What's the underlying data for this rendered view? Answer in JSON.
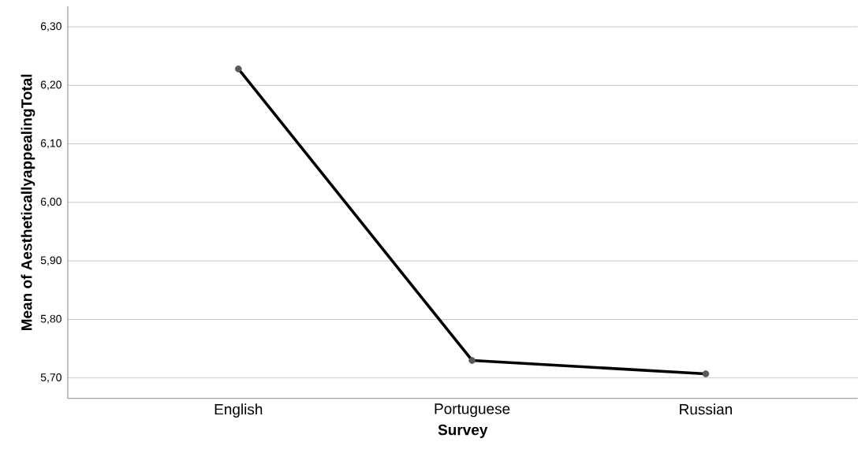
{
  "chart_data": {
    "type": "line",
    "xlabel": "Survey",
    "ylabel": "Mean of AestheticallyappealingTotal",
    "categories": [
      "English",
      "Portuguese",
      "Russian"
    ],
    "series": [
      {
        "color": "#000000",
        "values": [
          6.228,
          5.73,
          5.707
        ]
      }
    ],
    "marker": "circle",
    "line_style": "solid",
    "grid": "y",
    "ylim": [
      5.665,
      6.335
    ],
    "yticks": [
      {
        "value": 5.7,
        "label": "5,70"
      },
      {
        "value": 5.8,
        "label": "5,80"
      },
      {
        "value": 5.9,
        "label": "5,90"
      },
      {
        "value": 6.0,
        "label": "6,00"
      },
      {
        "value": 6.1,
        "label": "6,10"
      },
      {
        "value": 6.2,
        "label": "6,20"
      },
      {
        "value": 6.3,
        "label": "6,30"
      }
    ]
  }
}
